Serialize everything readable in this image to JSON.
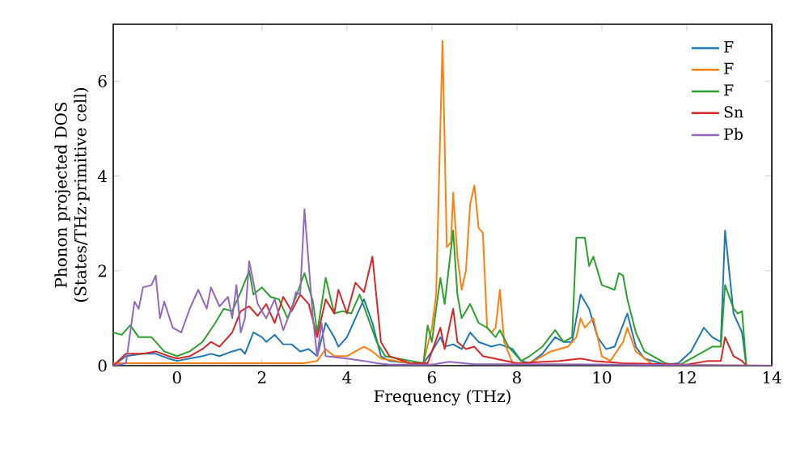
{
  "chart_data": {
    "type": "line",
    "xlabel": "Frequency (THz)",
    "ylabel": "Phonon projected DOS (States/THz·primitive cell)",
    "xlim": [
      -1.5,
      14
    ],
    "ylim": [
      0,
      7.2
    ],
    "xticks": [
      0,
      2,
      4,
      6,
      8,
      10,
      12,
      14
    ],
    "yticks": [
      0,
      2,
      4,
      6
    ],
    "grid": false,
    "legend": "top right",
    "marker": "none",
    "line_style": "solid",
    "series": [
      {
        "name": "F",
        "color": "#1f77b4",
        "x": [
          -1.5,
          -1.2,
          -0.8,
          -0.5,
          -0.2,
          0,
          0.3,
          0.6,
          0.8,
          1,
          1.3,
          1.5,
          1.6,
          1.8,
          2,
          2.1,
          2.3,
          2.5,
          2.7,
          2.9,
          3.1,
          3.3,
          3.5,
          3.7,
          3.8,
          4,
          4.2,
          4.4,
          4.6,
          4.8,
          5,
          5.5,
          5.8,
          6,
          6.2,
          6.3,
          6.5,
          6.7,
          6.9,
          7.1,
          7.4,
          7.6,
          7.9,
          8.1,
          8.3,
          8.6,
          8.9,
          9.1,
          9.3,
          9.5,
          9.7,
          9.9,
          10.1,
          10.3,
          10.6,
          10.8,
          11,
          11.5,
          11.8,
          12.1,
          12.4,
          12.6,
          12.8,
          12.9,
          13.1,
          13.3,
          13.4,
          14
        ],
        "values": [
          0,
          0.2,
          0.25,
          0.25,
          0.15,
          0.1,
          0.15,
          0.2,
          0.25,
          0.2,
          0.3,
          0.35,
          0.25,
          0.7,
          0.6,
          0.5,
          0.65,
          0.45,
          0.45,
          0.3,
          0.35,
          0.2,
          0.9,
          0.6,
          0.4,
          0.6,
          1.0,
          1.4,
          0.9,
          0.2,
          0.1,
          0.05,
          0.05,
          0.3,
          0.6,
          0.4,
          0.45,
          0.35,
          0.7,
          0.5,
          0.4,
          0.45,
          0.35,
          0.1,
          0.05,
          0.25,
          0.6,
          0.5,
          0.5,
          1.5,
          1.2,
          0.6,
          0.35,
          0.4,
          1.1,
          0.4,
          0.15,
          0.02,
          0.05,
          0.3,
          0.8,
          0.6,
          0.5,
          2.85,
          1.1,
          0.7,
          0,
          0
        ]
      },
      {
        "name": "F",
        "color": "#ff7f0e",
        "x": [
          -1.5,
          3,
          3.3,
          3.5,
          3.7,
          4,
          4.2,
          4.4,
          4.6,
          4.8,
          5.5,
          5.8,
          6,
          6.1,
          6.25,
          6.35,
          6.45,
          6.5,
          6.6,
          6.7,
          6.8,
          6.9,
          7.0,
          7.1,
          7.2,
          7.3,
          7.4,
          7.5,
          7.6,
          7.7,
          7.9,
          8.3,
          8.8,
          9.2,
          9.4,
          9.5,
          9.6,
          9.8,
          10,
          10.2,
          10.5,
          10.6,
          10.8,
          11.2,
          14
        ],
        "values": [
          0.05,
          0.05,
          0.1,
          0.35,
          0.2,
          0.2,
          0.3,
          0.4,
          0.3,
          0.15,
          0.05,
          0.05,
          0.8,
          1.5,
          6.85,
          2.5,
          2.6,
          3.65,
          2.3,
          1.6,
          2.0,
          3.4,
          3.8,
          2.9,
          2.8,
          0.8,
          0.7,
          0.8,
          1.6,
          0.5,
          0.05,
          0.05,
          0.3,
          0.4,
          0.6,
          1.0,
          0.8,
          1.0,
          0.2,
          0.1,
          0.5,
          0.8,
          0.3,
          0.02,
          0
        ]
      },
      {
        "name": "F",
        "color": "#2ca02c",
        "x": [
          -1.5,
          -1.3,
          -1.1,
          -0.9,
          -0.6,
          -0.3,
          0,
          0.3,
          0.6,
          0.9,
          1.1,
          1.3,
          1.5,
          1.7,
          1.8,
          2,
          2.2,
          2.4,
          2.6,
          2.8,
          3,
          3.2,
          3.3,
          3.5,
          3.7,
          3.9,
          4.1,
          4.3,
          4.5,
          4.7,
          4.9,
          5.5,
          5.8,
          5.9,
          6.0,
          6.1,
          6.2,
          6.3,
          6.5,
          6.6,
          6.7,
          6.9,
          7.1,
          7.3,
          7.5,
          7.6,
          7.8,
          8.1,
          8.3,
          8.6,
          8.9,
          9.1,
          9.3,
          9.4,
          9.6,
          9.7,
          9.8,
          10,
          10.3,
          10.4,
          10.5,
          10.6,
          10.8,
          11,
          11.5,
          11.8,
          12.2,
          12.6,
          12.8,
          12.9,
          13.1,
          13.2,
          13.3,
          13.4,
          14
        ],
        "values": [
          0.7,
          0.65,
          0.85,
          0.6,
          0.6,
          0.3,
          0.2,
          0.3,
          0.5,
          0.9,
          1.2,
          1.15,
          1.55,
          2.0,
          1.5,
          1.65,
          1.45,
          1.4,
          1.0,
          1.45,
          1.95,
          1.35,
          0.7,
          1.85,
          1.1,
          1.15,
          1.1,
          1.5,
          1.0,
          0.5,
          0.2,
          0.1,
          0.05,
          0.85,
          0.5,
          1.2,
          1.85,
          1.3,
          2.85,
          1.5,
          1.0,
          1.3,
          0.9,
          0.8,
          0.6,
          0.75,
          0.4,
          0.1,
          0.2,
          0.4,
          0.75,
          0.5,
          0.6,
          2.7,
          2.7,
          2.1,
          2.3,
          1.7,
          1.6,
          1.95,
          1.9,
          1.4,
          0.7,
          0.3,
          0.05,
          0,
          0.2,
          0.4,
          0.4,
          1.7,
          1.2,
          1.1,
          1.15,
          0,
          0
        ]
      },
      {
        "name": "Sn",
        "color": "#d62728",
        "x": [
          -1.5,
          -1.2,
          -0.8,
          -0.5,
          -0.2,
          0,
          0.3,
          0.6,
          0.8,
          1,
          1.3,
          1.5,
          1.7,
          1.9,
          2.1,
          2.3,
          2.5,
          2.7,
          2.9,
          3.1,
          3.3,
          3.5,
          3.7,
          3.8,
          4,
          4.2,
          4.4,
          4.6,
          4.8,
          5,
          5.5,
          5.9,
          6.2,
          6.3,
          6.5,
          6.6,
          6.8,
          7,
          7.2,
          8,
          9,
          9.5,
          9.8,
          10.5,
          12,
          12.5,
          12.8,
          12.9,
          13.1,
          13.3,
          13.4,
          14
        ],
        "values": [
          0,
          0.25,
          0.25,
          0.3,
          0.2,
          0.15,
          0.2,
          0.35,
          0.5,
          0.4,
          0.7,
          1.15,
          1.25,
          1.05,
          1.3,
          0.9,
          1.45,
          1.15,
          1.5,
          1.3,
          0.6,
          1.4,
          1.1,
          1.6,
          1.1,
          1.75,
          1.55,
          2.3,
          0.5,
          0.2,
          0.05,
          0.05,
          0.8,
          0.35,
          1.2,
          0.5,
          0.35,
          0.4,
          0.2,
          0.05,
          0.1,
          0.15,
          0.1,
          0.05,
          0.02,
          0.1,
          0.1,
          0.6,
          0.2,
          0.1,
          0,
          0
        ]
      },
      {
        "name": "Pb",
        "color": "#9467bd",
        "x": [
          -1.5,
          -1.2,
          -1.0,
          -0.9,
          -0.8,
          -0.6,
          -0.5,
          -0.4,
          -0.3,
          -0.1,
          0.1,
          0.3,
          0.5,
          0.7,
          0.8,
          1,
          1.2,
          1.3,
          1.4,
          1.5,
          1.6,
          1.7,
          1.9,
          2.1,
          2.3,
          2.5,
          2.7,
          2.8,
          2.9,
          3.0,
          3.2,
          3.3,
          3.4,
          3.5,
          4,
          4.4,
          4.7,
          5,
          6,
          6.4,
          7,
          9,
          14
        ],
        "values": [
          0,
          0.05,
          1.35,
          1.2,
          1.65,
          1.7,
          1.9,
          1.0,
          1.35,
          0.8,
          0.7,
          1.2,
          1.6,
          1.2,
          1.65,
          1.25,
          1.45,
          1.0,
          1.7,
          0.7,
          1.0,
          2.2,
          1.3,
          1.0,
          1.4,
          0.75,
          1.2,
          1.55,
          1.5,
          3.3,
          1.0,
          0.2,
          0.9,
          0.2,
          0.15,
          0.1,
          0.05,
          0.02,
          0.02,
          0.08,
          0.03,
          0.03,
          0
        ]
      }
    ]
  }
}
